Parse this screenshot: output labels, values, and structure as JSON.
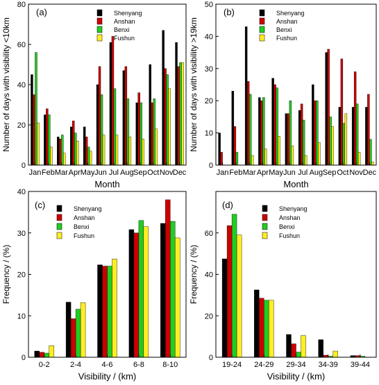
{
  "series_colors": [
    "#000000",
    "#cc0000",
    "#22cc22",
    "#ffee22"
  ],
  "chart_data": [
    {
      "type": "bar",
      "panel_label": "(a)",
      "xlabel": "Month",
      "ylabel": "Number of days with visibility <10km",
      "ylim": [
        0,
        80
      ],
      "yticks": [
        0,
        20,
        40,
        60,
        80
      ],
      "categories": [
        "Jan",
        "Feb",
        "Mar",
        "Apr",
        "May",
        "Jun",
        "Jul",
        "Aug",
        "Sep",
        "Oct",
        "Nov",
        "Dec"
      ],
      "tick_labels": [
        "Jan",
        "Feb",
        "Mar",
        "Apr",
        "May",
        "Jun",
        "Jul",
        "Aug",
        "Sep",
        "Oct",
        "Nov",
        "Dec"
      ],
      "legend_position": "top-right",
      "series": [
        {
          "name": "Shenyang",
          "values": [
            45,
            25,
            14,
            19,
            19,
            40,
            61,
            47,
            31,
            50,
            67,
            61
          ]
        },
        {
          "name": "Anshan",
          "values": [
            35,
            28,
            13,
            22,
            14,
            49,
            64,
            49,
            36,
            31,
            48,
            49
          ]
        },
        {
          "name": "Benxi",
          "values": [
            56,
            25,
            15,
            16,
            9,
            35,
            38,
            33,
            31,
            33,
            45,
            51
          ]
        },
        {
          "name": "Fushun",
          "values": [
            21,
            9,
            6,
            12,
            7,
            15,
            15,
            14,
            13,
            18,
            38,
            51
          ]
        }
      ]
    },
    {
      "type": "bar",
      "panel_label": "(b)",
      "xlabel": "Month",
      "ylabel": "Number of days with visibility >19km",
      "ylim": [
        0,
        50
      ],
      "yticks": [
        0,
        10,
        20,
        30,
        40,
        50
      ],
      "categories": [
        "Jan",
        "Feb",
        "Mar",
        "Apr",
        "May",
        "Jun",
        "Jul",
        "Aug",
        "Sep",
        "Oct",
        "Nov",
        "Dec"
      ],
      "tick_labels": [
        "Jan",
        "Feb",
        "Mar",
        "Apr",
        "May",
        "Jun",
        "Jul",
        "Aug",
        "Sep",
        "Oct",
        "Nov",
        "Dec"
      ],
      "legend_position": "top-right",
      "series": [
        {
          "name": "Shenyang",
          "values": [
            10,
            23,
            43,
            21,
            27,
            16,
            17,
            25,
            35,
            18,
            18,
            18
          ]
        },
        {
          "name": "Anshan",
          "values": [
            4,
            12,
            26,
            20,
            25,
            16,
            19,
            20,
            36,
            33,
            29,
            22
          ]
        },
        {
          "name": "Benxi",
          "values": [
            0,
            4,
            22,
            21,
            24,
            20,
            14,
            20,
            15,
            13,
            19,
            8
          ]
        },
        {
          "name": "Fushun",
          "values": [
            0,
            0,
            3,
            5,
            9,
            6,
            3,
            7,
            12,
            16,
            4,
            1
          ]
        }
      ]
    },
    {
      "type": "bar",
      "panel_label": "(c)",
      "xlabel": "Visibility / (km)",
      "ylabel": "Frequency / (%)",
      "ylim": [
        0,
        40
      ],
      "yticks": [
        0,
        10,
        20,
        30,
        40
      ],
      "categories": [
        "0-2",
        "2-4",
        "4-6",
        "6-8",
        "8-10"
      ],
      "tick_labels": [
        "0-2",
        "2-4",
        "4-6",
        "6-8",
        "8-10"
      ],
      "legend_position": "top-left",
      "series": [
        {
          "name": "Shenyang",
          "values": [
            1.5,
            13.3,
            22.3,
            30.8,
            32.3
          ]
        },
        {
          "name": "Anshan",
          "values": [
            1.2,
            9.3,
            22.0,
            30.0,
            38.0
          ]
        },
        {
          "name": "Benxi",
          "values": [
            1.0,
            11.6,
            22.0,
            33.0,
            32.8
          ]
        },
        {
          "name": "Fushun",
          "values": [
            2.8,
            13.2,
            23.7,
            31.5,
            28.8
          ]
        }
      ]
    },
    {
      "type": "bar",
      "panel_label": "(d)",
      "xlabel": "Visibility / (km)",
      "ylabel": "Frequency / (%)",
      "ylim": [
        0,
        80
      ],
      "yticks": [
        0,
        20,
        40,
        60
      ],
      "categories": [
        "19-24",
        "24-29",
        "29-34",
        "34-39",
        "39-44"
      ],
      "tick_labels": [
        "19-24",
        "24-29",
        "29-34",
        "34-39",
        "39-44"
      ],
      "legend_position": "top-left",
      "series": [
        {
          "name": "Shenyang",
          "values": [
            47.5,
            32.5,
            11.0,
            8.5,
            0.8
          ]
        },
        {
          "name": "Anshan",
          "values": [
            63.5,
            28.5,
            6.5,
            1.0,
            0.8
          ]
        },
        {
          "name": "Benxi",
          "values": [
            69.0,
            27.5,
            2.5,
            0.5,
            0.5
          ]
        },
        {
          "name": "Fushun",
          "values": [
            59.0,
            27.5,
            10.5,
            3.0,
            0.0
          ]
        }
      ]
    }
  ]
}
